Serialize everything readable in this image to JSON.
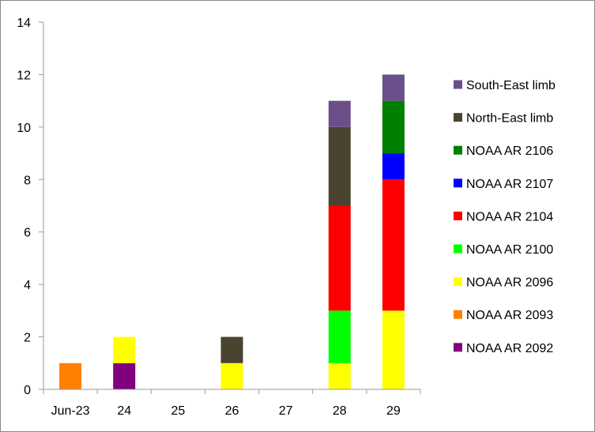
{
  "chart_data": {
    "type": "bar",
    "stacked": true,
    "title": "",
    "xlabel": "",
    "ylabel": "",
    "ylim": [
      0,
      14
    ],
    "yticks": [
      0,
      2,
      4,
      6,
      8,
      10,
      12,
      14
    ],
    "grid": false,
    "legend_position": "right",
    "categories": [
      "Jun-23",
      "24",
      "25",
      "26",
      "27",
      "28",
      "29"
    ],
    "series": [
      {
        "name": "NOAA AR 2092",
        "color": "#800080",
        "values": [
          0,
          1,
          0,
          0,
          0,
          0,
          0
        ]
      },
      {
        "name": "NOAA AR 2093",
        "color": "#ff8000",
        "values": [
          1,
          0,
          0,
          0,
          0,
          0,
          0
        ]
      },
      {
        "name": "NOAA AR 2096",
        "color": "#ffff00",
        "values": [
          0,
          1,
          0,
          1,
          0,
          1,
          3
        ]
      },
      {
        "name": "NOAA AR 2100",
        "color": "#00ff00",
        "values": [
          0,
          0,
          0,
          0,
          0,
          2,
          0
        ]
      },
      {
        "name": "NOAA AR 2104",
        "color": "#ff0000",
        "values": [
          0,
          0,
          0,
          0,
          0,
          4,
          5
        ]
      },
      {
        "name": "NOAA AR 2107",
        "color": "#0000ff",
        "values": [
          0,
          0,
          0,
          0,
          0,
          0,
          1
        ]
      },
      {
        "name": "NOAA AR 2106",
        "color": "#008000",
        "values": [
          0,
          0,
          0,
          0,
          0,
          0,
          2
        ]
      },
      {
        "name": "North-East limb",
        "color": "#4a4330",
        "values": [
          0,
          0,
          0,
          1,
          0,
          3,
          0
        ]
      },
      {
        "name": "South-East limb",
        "color": "#6a4f8a",
        "values": [
          0,
          0,
          0,
          0,
          0,
          1,
          1
        ]
      }
    ]
  }
}
